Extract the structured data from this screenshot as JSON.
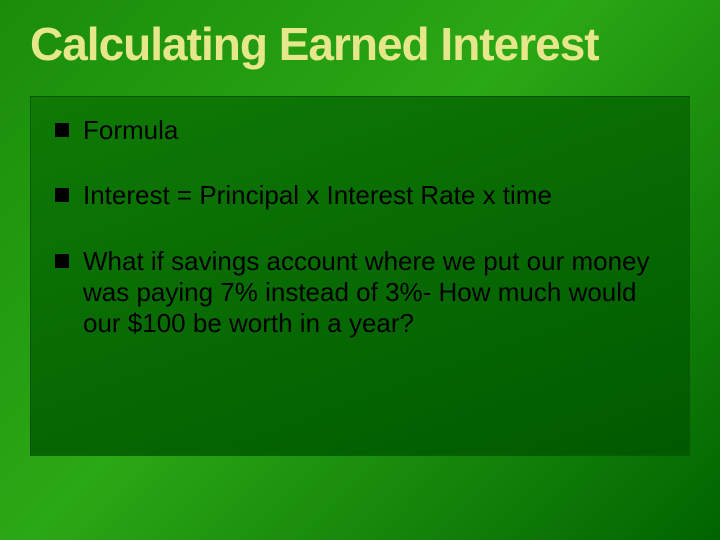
{
  "slide": {
    "title": "Calculating Earned Interest",
    "title_color": "#e6e68a",
    "title_fontsize": 46,
    "background_gradient": [
      "#1a8c0a",
      "#2ba815",
      "#006400"
    ],
    "content_background_gradient": [
      "#0f7a05",
      "#005a00"
    ],
    "bullet_color": "#000000",
    "text_color": "#000000",
    "body_fontsize": 26,
    "bullets": [
      {
        "text": "Formula"
      },
      {
        "text": "Interest = Principal x Interest Rate x time"
      },
      {
        "text": "What if savings account where we put our money was paying 7% instead of 3%- How much would our $100 be worth in a year?"
      }
    ]
  }
}
